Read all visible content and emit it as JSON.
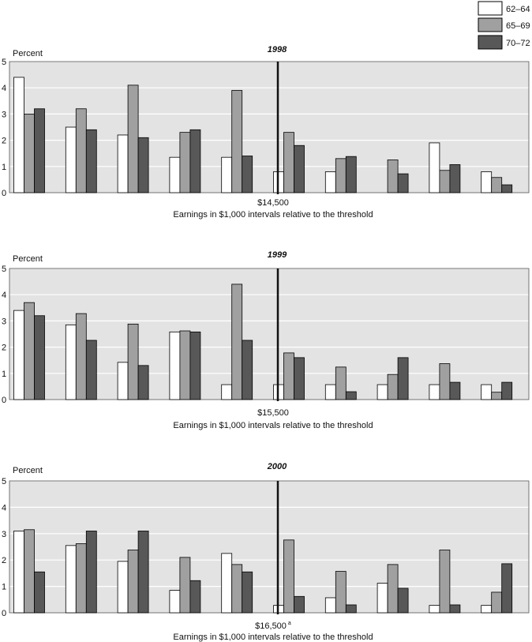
{
  "legend": {
    "placement": "top-right",
    "entries": [
      {
        "label": "62–64",
        "color": "#ffffff"
      },
      {
        "label": "65–69",
        "color": "#a0a0a0"
      },
      {
        "label": "70–72",
        "color": "#585858"
      }
    ]
  },
  "style": {
    "plot_background": "#e3e3e3",
    "gridline_color": "#ffffff",
    "bar_outline": "#000000"
  },
  "chart_data": [
    {
      "type": "bar",
      "title": "1998",
      "ylabel": "Percent",
      "xlabel": "Earnings in $1,000 intervals relative to the threshold",
      "threshold_label": "$14,500",
      "threshold_superscript": "",
      "ylim": [
        0,
        5
      ],
      "yticks": [
        0,
        1,
        2,
        3,
        4,
        5
      ],
      "grid": true,
      "group_count": 10,
      "series": [
        {
          "name": "62–64",
          "values": [
            4.4,
            2.5,
            2.2,
            1.35,
            1.35,
            0.8,
            0.8,
            0,
            1.9,
            0.8
          ]
        },
        {
          "name": "65–69",
          "values": [
            3.0,
            3.2,
            4.1,
            2.3,
            3.9,
            2.3,
            1.3,
            1.25,
            0.85,
            0.58
          ]
        },
        {
          "name": "70–72",
          "values": [
            3.2,
            2.4,
            2.1,
            2.4,
            1.4,
            1.8,
            1.38,
            0.72,
            1.07,
            0.3
          ]
        }
      ]
    },
    {
      "type": "bar",
      "title": "1999",
      "ylabel": "Percent",
      "xlabel": "Earnings in $1,000 intervals relative to the threshold",
      "threshold_label": "$15,500",
      "threshold_superscript": "",
      "ylim": [
        0,
        5
      ],
      "yticks": [
        0,
        1,
        2,
        3,
        4,
        5
      ],
      "grid": true,
      "group_count": 10,
      "series": [
        {
          "name": "62–64",
          "values": [
            3.4,
            2.85,
            1.42,
            2.58,
            0.57,
            0.57,
            0.57,
            0.57,
            0.57,
            0.57
          ]
        },
        {
          "name": "65–69",
          "values": [
            3.7,
            3.28,
            2.88,
            2.62,
            4.4,
            1.78,
            1.24,
            0.96,
            1.37,
            0.28
          ]
        },
        {
          "name": "70–72",
          "values": [
            3.2,
            2.26,
            1.3,
            2.58,
            2.26,
            1.6,
            0.3,
            1.6,
            0.66,
            0.66
          ]
        }
      ]
    },
    {
      "type": "bar",
      "title": "2000",
      "ylabel": "Percent",
      "xlabel": "Earnings in $1,000 intervals relative to the threshold",
      "threshold_label": "$16,500",
      "threshold_superscript": "a",
      "ylim": [
        0,
        5
      ],
      "yticks": [
        0,
        1,
        2,
        3,
        4,
        5
      ],
      "grid": true,
      "group_count": 10,
      "series": [
        {
          "name": "62–64",
          "values": [
            3.1,
            2.55,
            1.95,
            0.85,
            2.25,
            0.28,
            0.57,
            1.12,
            0.28,
            0.28
          ]
        },
        {
          "name": "65–69",
          "values": [
            3.15,
            2.62,
            2.38,
            2.1,
            1.83,
            2.76,
            1.57,
            1.83,
            2.38,
            0.78
          ]
        },
        {
          "name": "70–72",
          "values": [
            1.55,
            3.1,
            3.1,
            1.22,
            1.55,
            0.62,
            0.3,
            0.93,
            0.3,
            1.86
          ]
        }
      ]
    }
  ]
}
